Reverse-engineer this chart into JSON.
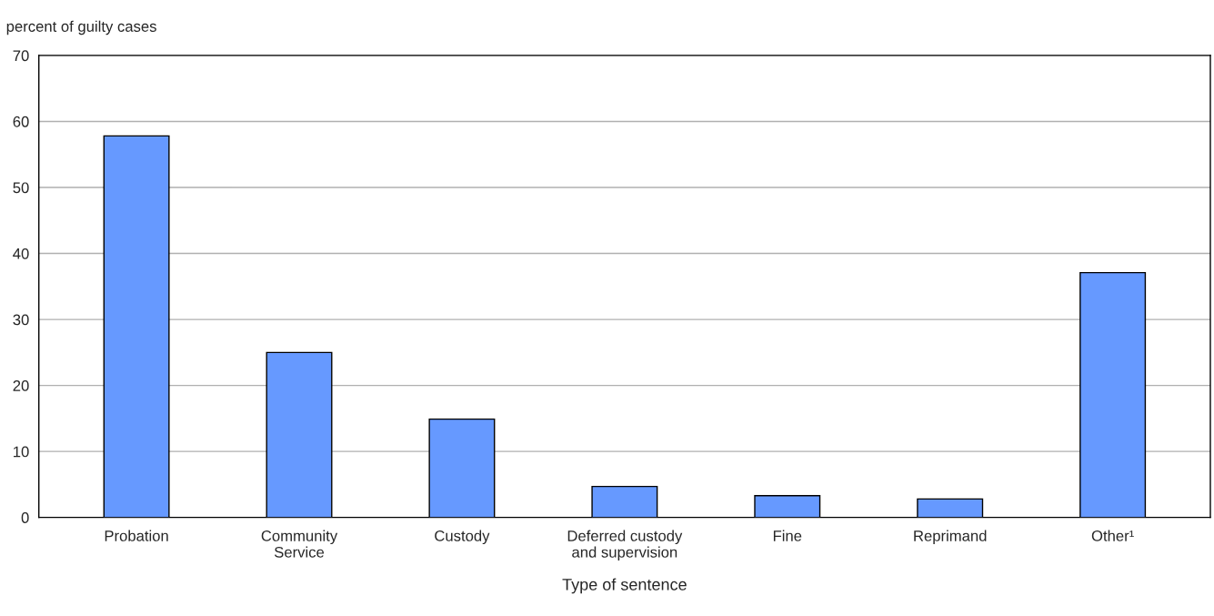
{
  "chart_data": {
    "type": "bar",
    "ylabel": "percent of guilty cases",
    "xlabel": "Type of sentence",
    "categories": [
      "Probation",
      "Community\nService",
      "Custody",
      "Deferred custody\nand supervision",
      "Fine",
      "Reprimand",
      "Other¹"
    ],
    "values": [
      57.8,
      25.0,
      14.9,
      4.7,
      3.3,
      2.8,
      37.1
    ],
    "color": "#6699ff",
    "ylim": [
      0,
      70
    ],
    "yticks": [
      0,
      10,
      20,
      30,
      40,
      50,
      60,
      70
    ],
    "grid": "y",
    "legend": false
  }
}
